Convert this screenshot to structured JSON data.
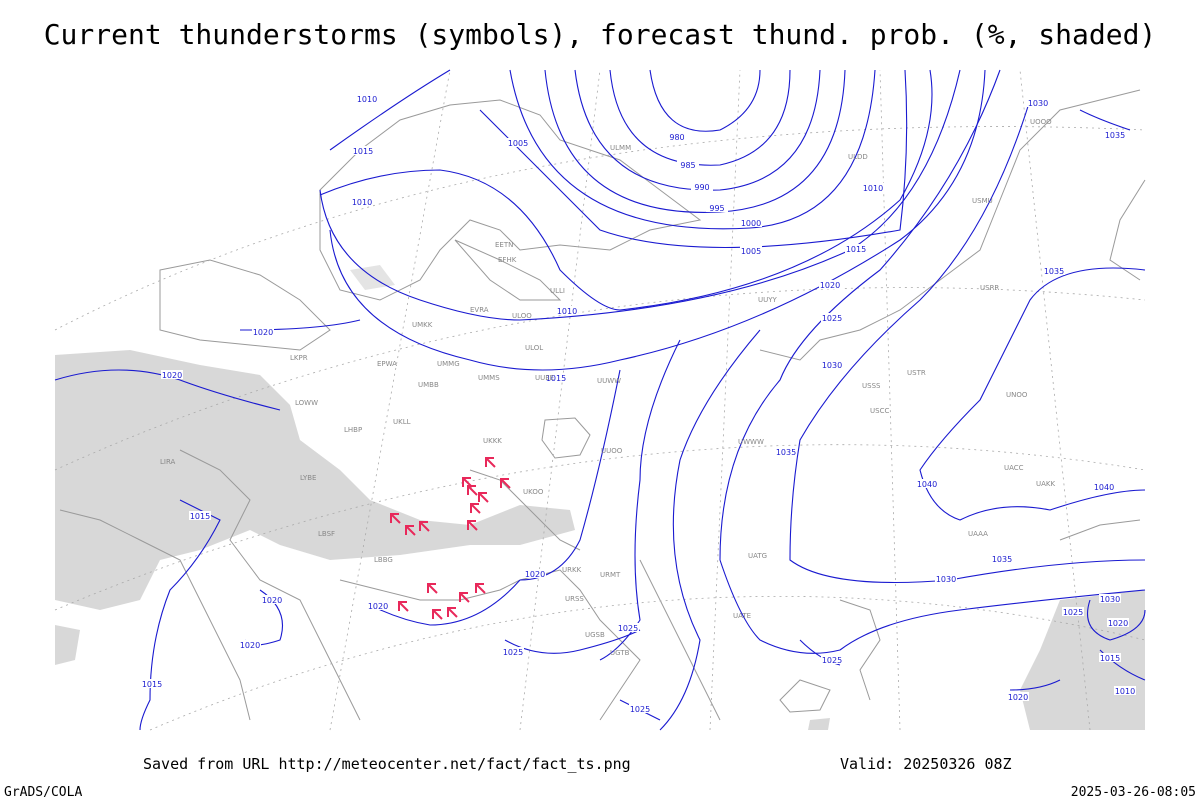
{
  "title": "Current thunderstorms (symbols), forecast thund. prob. (%, shaded)",
  "footer": {
    "source": "Saved from URL http://meteocenter.net/fact/fact_ts.png",
    "valid": "Valid: 20250326 08Z",
    "left": "GrADS/COLA",
    "right": "2025-03-26-08:05"
  },
  "isobar_labels": [
    "1010",
    "1015",
    "1010",
    "1005",
    "980",
    "985",
    "990",
    "995",
    "1000",
    "1005",
    "1010",
    "1015",
    "1020",
    "1025",
    "1030",
    "1035",
    "1040",
    "1040",
    "1035",
    "1030",
    "1030",
    "1025",
    "1020",
    "1015",
    "1010",
    "1020",
    "1030",
    "1035",
    "1035",
    "1020",
    "1020",
    "1015",
    "1020",
    "1020",
    "1015",
    "1020",
    "1020",
    "1025",
    "1025",
    "1025",
    "1025",
    "1015",
    "1010"
  ],
  "station_labels": [
    "ULMM",
    "EFHK",
    "EETN",
    "ULLI",
    "EVRA",
    "ULOO",
    "UMKK",
    "EPWA",
    "UMMG",
    "UMMS",
    "ULOL",
    "UUEE",
    "UUWW",
    "UMBB",
    "UKLL",
    "UKKK",
    "LKPR",
    "LHBP",
    "LOWW",
    "LIRA",
    "LYBE",
    "LBSF",
    "LBBG",
    "UKOO",
    "URKK",
    "URSS",
    "UGSB",
    "UGTB",
    "URMT",
    "UATG",
    "UATE",
    "USSS",
    "USCC",
    "USTR",
    "UNOO",
    "UACC",
    "UAKK",
    "UAAA",
    "ULDD",
    "UUYY",
    "USRR",
    "USMU",
    "UOOO",
    "UUOO",
    "UWWW"
  ]
}
